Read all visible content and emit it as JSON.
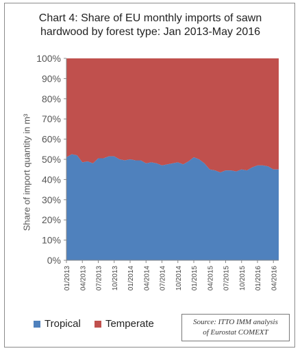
{
  "chart_data": {
    "type": "area",
    "title": "Chart 4: Share of EU monthly imports of sawn\nhardwood by forest type: Jan 2013-May 2016",
    "ylabel": "Share of import quantity in m³",
    "xlabel": "",
    "ylim": [
      0,
      100
    ],
    "yticks": [
      "0%",
      "10%",
      "20%",
      "30%",
      "40%",
      "50%",
      "60%",
      "70%",
      "80%",
      "90%",
      "100%"
    ],
    "x": [
      "01/2013",
      "02/2013",
      "03/2013",
      "04/2013",
      "05/2013",
      "06/2013",
      "07/2013",
      "08/2013",
      "09/2013",
      "10/2013",
      "11/2013",
      "12/2013",
      "01/2014",
      "02/2014",
      "03/2014",
      "04/2014",
      "05/2014",
      "06/2014",
      "07/2014",
      "08/2014",
      "09/2014",
      "10/2014",
      "11/2014",
      "12/2014",
      "01/2015",
      "02/2015",
      "03/2015",
      "04/2015",
      "05/2015",
      "06/2015",
      "07/2015",
      "08/2015",
      "09/2015",
      "10/2015",
      "11/2015",
      "12/2015",
      "01/2016",
      "02/2016",
      "03/2016",
      "04/2016",
      "05/2016"
    ],
    "xtick_labels": [
      "01/2013",
      "04/2013",
      "07/2013",
      "10/2013",
      "01/2014",
      "04/2014",
      "07/2014",
      "10/2014",
      "01/2015",
      "04/2015",
      "07/2015",
      "10/2015",
      "01/2016",
      "04/2016"
    ],
    "series": [
      {
        "name": "Tropical",
        "color": "#4f81bd",
        "values": [
          51,
          52.5,
          52,
          48.5,
          49,
          48,
          50.5,
          50.5,
          51.5,
          51.5,
          50,
          49.5,
          50,
          49.5,
          49.5,
          48,
          48.5,
          48,
          47,
          47.5,
          48,
          48.5,
          47.5,
          49,
          51,
          50,
          48,
          45,
          44.5,
          43.5,
          44.5,
          44.5,
          44,
          45,
          44.5,
          46,
          47,
          47,
          46.5,
          45,
          45
        ]
      },
      {
        "name": "Temperate",
        "color": "#c0504d",
        "values": [
          49,
          47.5,
          48,
          51.5,
          51,
          52,
          49.5,
          49.5,
          48.5,
          48.5,
          50,
          50.5,
          50,
          50.5,
          50.5,
          52,
          51.5,
          52,
          53,
          52.5,
          52,
          51.5,
          52.5,
          51,
          49,
          50,
          52,
          55,
          55.5,
          56.5,
          55.5,
          55.5,
          56,
          55,
          55.5,
          54,
          53,
          53,
          53.5,
          55,
          55
        ]
      }
    ],
    "stacked": true,
    "legend_position": "bottom-left",
    "grid": false
  },
  "source_note": "Source: ITTO IMM analysis\nof Eurostat COMEXT"
}
